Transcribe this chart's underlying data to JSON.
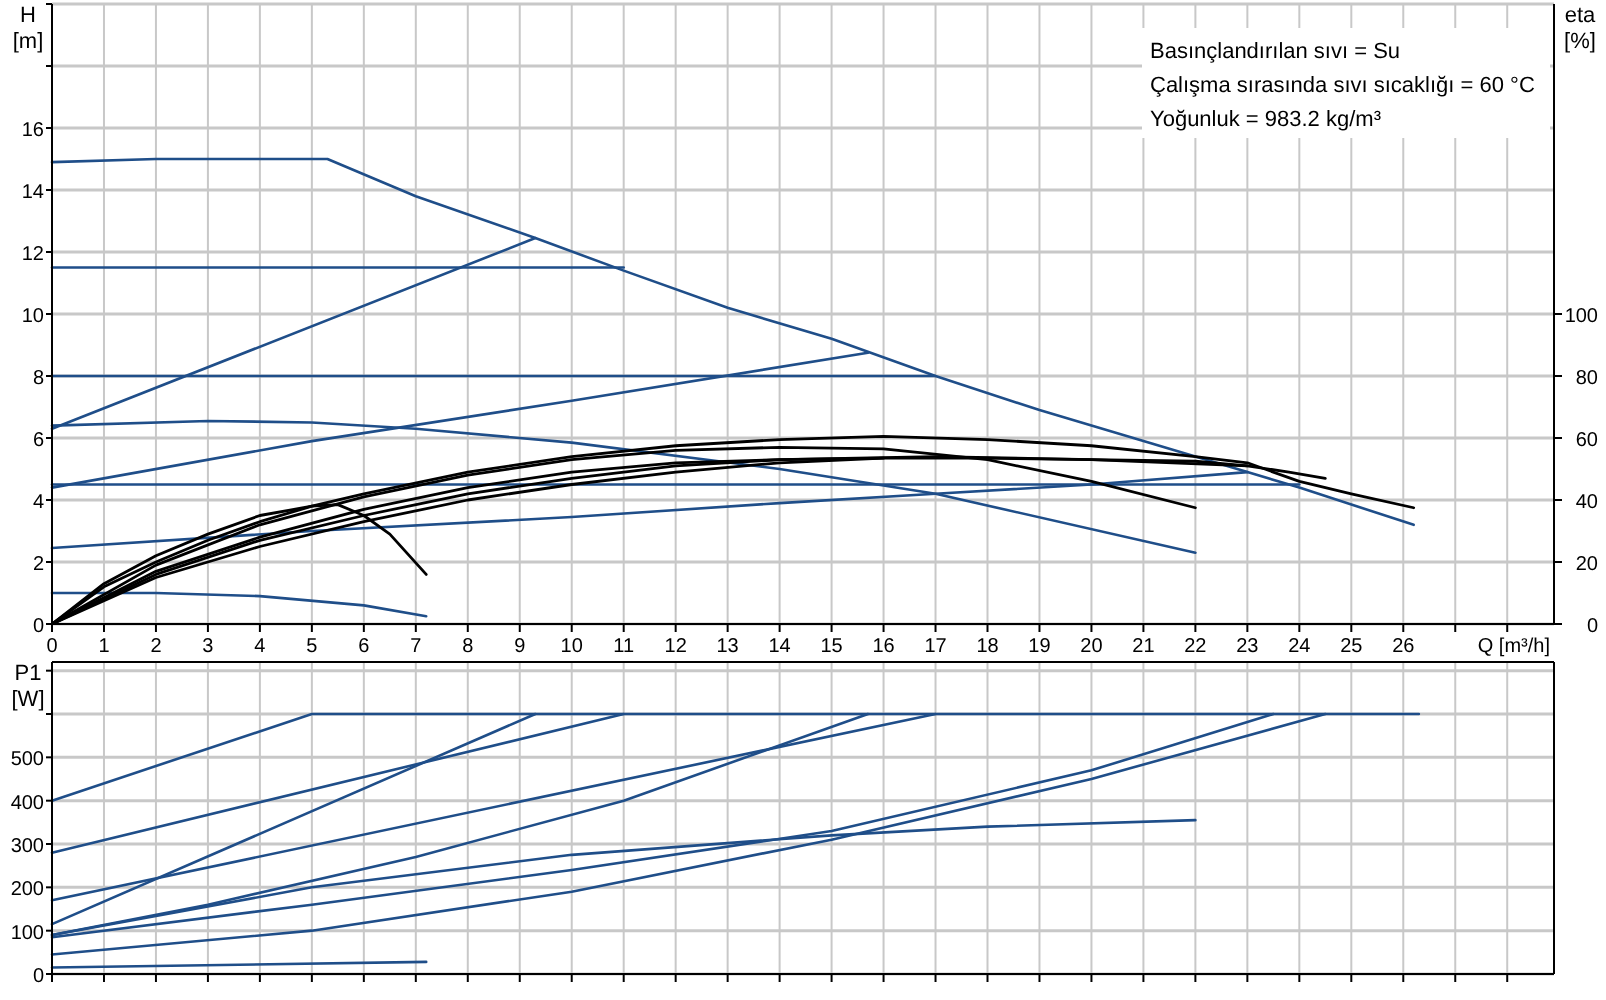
{
  "chart_data": [
    {
      "type": "line",
      "xlabel": "Q [m³/h]",
      "ylabel": "H [m]",
      "y2label": "eta [%]",
      "xlim": [
        0,
        28.9
      ],
      "xticks": [
        0,
        1,
        2,
        3,
        4,
        5,
        6,
        7,
        8,
        9,
        10,
        11,
        12,
        13,
        14,
        15,
        16,
        17,
        18,
        19,
        20,
        21,
        22,
        23,
        24,
        25,
        26,
        {
          "value": 27,
          "label": null
        },
        {
          "value": 28,
          "label": null
        }
      ],
      "ylim": [
        0,
        20
      ],
      "yticks": [
        0,
        2,
        4,
        6,
        8,
        10,
        12,
        14,
        16,
        {
          "value": 18,
          "label": null
        },
        {
          "value": 20,
          "label": null
        }
      ],
      "y2lim": [
        0,
        200
      ],
      "y2ticks": [
        0,
        20,
        40,
        60,
        80,
        100
      ],
      "grid": true,
      "annotations": [
        "Basınçlandırılan sıvı = Su",
        "Çalışma sırasında sıvı sıcaklığı = 60 °C",
        "Yoğunluk = 983.2 kg/m³"
      ],
      "series": [
        {
          "color": "#1f4e89",
          "x": [
            0,
            2,
            5.3,
            7,
            9.3,
            11,
            13,
            15,
            17,
            19,
            21,
            23,
            24,
            26.2
          ],
          "values": [
            14.9,
            15,
            15,
            13.8,
            12.45,
            11.4,
            10.2,
            9.2,
            8,
            6.9,
            5.9,
            4.9,
            4.4,
            3.2
          ]
        },
        {
          "color": "#1f4e89",
          "x": [
            0,
            11
          ],
          "values": [
            11.5,
            11.5
          ]
        },
        {
          "color": "#1f4e89",
          "x": [
            0,
            9.3
          ],
          "values": [
            6.3,
            12.45
          ]
        },
        {
          "color": "#1f4e89",
          "x": [
            0,
            17
          ],
          "values": [
            8,
            8
          ]
        },
        {
          "color": "#1f4e89",
          "x": [
            0,
            5,
            10,
            15.7
          ],
          "values": [
            4.4,
            5.9,
            7.2,
            8.75
          ]
        },
        {
          "color": "#1f4e89",
          "x": [
            0,
            3,
            5,
            7,
            10,
            14,
            17,
            22
          ],
          "values": [
            6.4,
            6.55,
            6.5,
            6.3,
            5.85,
            5,
            4.2,
            2.3
          ]
        },
        {
          "color": "#1f4e89",
          "x": [
            0,
            24
          ],
          "values": [
            4.5,
            4.5
          ]
        },
        {
          "color": "#1f4e89",
          "x": [
            0,
            5,
            10,
            14,
            17,
            20,
            23
          ],
          "values": [
            2.45,
            3,
            3.45,
            3.9,
            4.2,
            4.5,
            4.9
          ]
        },
        {
          "color": "#1f4e89",
          "x": [
            0,
            2,
            4,
            6,
            7.2
          ],
          "values": [
            1,
            1,
            0.9,
            0.6,
            0.25
          ]
        },
        {
          "color": "#000000",
          "axis": "y2",
          "x": [
            0,
            1,
            2,
            3,
            4,
            5,
            6,
            8,
            10,
            12,
            14,
            16,
            18,
            20,
            22,
            23,
            24,
            25,
            26.2
          ],
          "values": [
            0,
            12,
            20,
            27,
            33,
            38,
            42,
            49,
            54,
            57.5,
            59.5,
            60.5,
            59.5,
            57.5,
            54,
            52,
            46,
            42,
            37.5
          ]
        },
        {
          "color": "#000000",
          "axis": "y2",
          "x": [
            0,
            2,
            4,
            6,
            8,
            10,
            12,
            14,
            16,
            18,
            20,
            22
          ],
          "values": [
            0,
            19,
            32,
            41,
            48,
            53,
            56,
            57,
            56.5,
            53,
            46,
            37.5
          ]
        },
        {
          "color": "#000000",
          "axis": "y2",
          "x": [
            0,
            2,
            4,
            6,
            8,
            10,
            12,
            14,
            16,
            18,
            20,
            22,
            23
          ],
          "values": [
            0,
            17,
            28,
            37,
            44,
            49,
            52,
            53,
            53.5,
            53.5,
            53,
            52.5,
            51
          ]
        },
        {
          "color": "#000000",
          "axis": "y2",
          "x": [
            0,
            2,
            4,
            6,
            8,
            10,
            12,
            14,
            17,
            20,
            23,
            23.8,
            24.5
          ],
          "values": [
            0,
            16,
            27,
            35,
            42,
            47,
            51,
            53,
            54,
            53,
            51,
            49,
            47
          ]
        },
        {
          "color": "#000000",
          "axis": "y2",
          "x": [
            0,
            2,
            4,
            6,
            8,
            10,
            12,
            14,
            16
          ],
          "values": [
            0,
            15,
            25,
            33,
            40,
            45,
            49,
            52,
            53.5
          ]
        },
        {
          "color": "#000000",
          "axis": "y2",
          "x": [
            0,
            1,
            2,
            3,
            4,
            5,
            5.5,
            6,
            6.5,
            7.2
          ],
          "values": [
            0,
            13,
            22,
            29,
            35,
            38,
            38.5,
            35,
            29,
            16
          ]
        }
      ]
    },
    {
      "type": "line",
      "ylabel": "P1 [W]",
      "xlim": [
        0,
        28.9
      ],
      "tick_labels": "y",
      "xticks": [
        0,
        1,
        2,
        3,
        4,
        5,
        6,
        7,
        8,
        9,
        10,
        11,
        12,
        13,
        14,
        15,
        16,
        17,
        18,
        19,
        20,
        21,
        22,
        23,
        24,
        25,
        26,
        27,
        28
      ],
      "ylim": [
        0,
        720
      ],
      "yticks": [
        0,
        100,
        200,
        300,
        400,
        500,
        {
          "value": 600,
          "label": null
        },
        {
          "value": 700,
          "label": null
        }
      ],
      "grid": true,
      "series": [
        {
          "color": "#1f4e89",
          "x": [
            0,
            5,
            26.3
          ],
          "values": [
            400,
            600,
            600
          ]
        },
        {
          "color": "#1f4e89",
          "x": [
            0,
            11
          ],
          "values": [
            280,
            600
          ]
        },
        {
          "color": "#1f4e89",
          "x": [
            0,
            9.3
          ],
          "values": [
            115,
            600
          ]
        },
        {
          "color": "#1f4e89",
          "x": [
            0,
            17
          ],
          "values": [
            170,
            600
          ]
        },
        {
          "color": "#1f4e89",
          "x": [
            0,
            3,
            7,
            11,
            15.7
          ],
          "values": [
            90,
            160,
            270,
            400,
            600
          ]
        },
        {
          "color": "#1f4e89",
          "x": [
            0,
            5,
            10,
            15,
            18,
            22
          ],
          "values": [
            90,
            200,
            275,
            320,
            340,
            355
          ]
        },
        {
          "color": "#1f4e89",
          "x": [
            0,
            5,
            10,
            15,
            20,
            23.5
          ],
          "values": [
            85,
            160,
            240,
            330,
            470,
            600
          ]
        },
        {
          "color": "#1f4e89",
          "x": [
            0,
            5,
            10,
            15,
            20,
            24.5
          ],
          "values": [
            45,
            100,
            190,
            310,
            450,
            600
          ]
        },
        {
          "color": "#1f4e89",
          "x": [
            0,
            7.2
          ],
          "values": [
            15,
            28
          ]
        }
      ]
    }
  ]
}
